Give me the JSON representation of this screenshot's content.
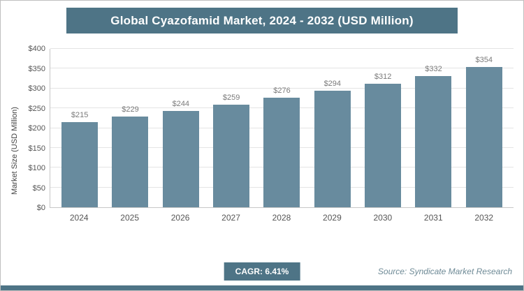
{
  "header": {
    "title": "Global Cyazofamid Market, 2024 - 2032 (USD Million)"
  },
  "footer": {
    "cagr_label": "CAGR: 6.41%",
    "source": "Source: Syndicate Market Research"
  },
  "chart_data": {
    "type": "bar",
    "title": "Global Cyazofamid Market, 2024 - 2032 (USD Million)",
    "categories": [
      "2024",
      "2025",
      "2026",
      "2027",
      "2028",
      "2029",
      "2030",
      "2031",
      "2032"
    ],
    "values": [
      215,
      229,
      244,
      259,
      276,
      294,
      312,
      332,
      354
    ],
    "value_prefix": "$",
    "xlabel": "",
    "ylabel": "Market Size (USD Million)",
    "ylim": [
      0,
      400
    ],
    "ytick_step": 50,
    "grid": true,
    "legend": "none",
    "bar_color": "#688b9e"
  },
  "colors": {
    "header_bg": "#4e7486",
    "bar_fill": "#688b9e",
    "gridline": "#e4e4e4",
    "accent_strip": "#4e7486"
  }
}
